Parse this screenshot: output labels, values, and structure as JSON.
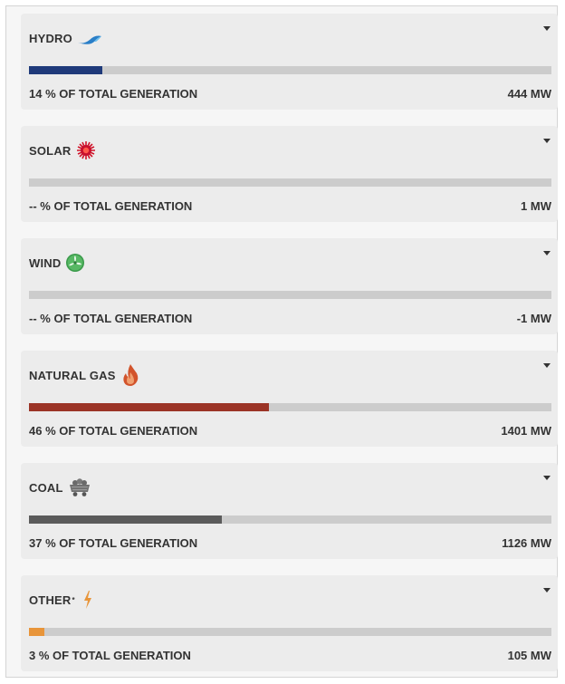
{
  "sources": [
    {
      "name": "HYDRO",
      "icon": "water-wave-icon",
      "percent_text": "14",
      "percent_value": 14,
      "suffix": " % OF TOTAL GENERATION",
      "mw": "444 MW",
      "color": "#1f3a7a"
    },
    {
      "name": "SOLAR",
      "icon": "sun-icon",
      "percent_text": "--",
      "percent_value": 0,
      "suffix": " % OF TOTAL GENERATION",
      "mw": "1 MW",
      "color": "#c8102e"
    },
    {
      "name": "WIND",
      "icon": "wind-turbine-icon",
      "percent_text": "--",
      "percent_value": 0,
      "suffix": " % OF TOTAL GENERATION",
      "mw": "-1 MW",
      "color": "#3a9a4a"
    },
    {
      "name": "NATURAL GAS",
      "icon": "flame-icon",
      "percent_text": "46",
      "percent_value": 46,
      "suffix": " % OF TOTAL GENERATION",
      "mw": "1401 MW",
      "color": "#9b3426"
    },
    {
      "name": "COAL",
      "icon": "coal-cart-icon",
      "percent_text": "37",
      "percent_value": 37,
      "suffix": " % OF TOTAL GENERATION",
      "mw": "1126 MW",
      "color": "#5b5b5b"
    },
    {
      "name": "OTHER",
      "asterisk": "*",
      "icon": "lightning-bolt-icon",
      "percent_text": "3",
      "percent_value": 3,
      "suffix": " % OF TOTAL GENERATION",
      "mw": "105 MW",
      "color": "#e8953a"
    }
  ]
}
